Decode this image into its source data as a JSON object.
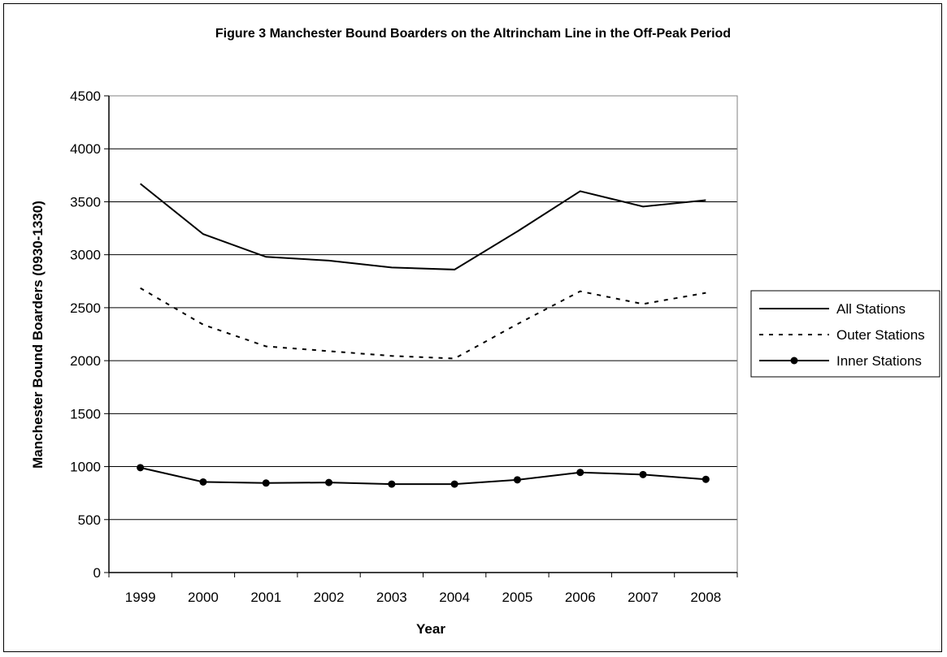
{
  "chart_data": {
    "type": "line",
    "title": "Figure 3 Manchester Bound Boarders on the Altrincham Line in the Off-Peak Period",
    "xlabel": "Year",
    "ylabel": "Manchester Bound Boarders (0930-1330)",
    "categories": [
      "1999",
      "2000",
      "2001",
      "2002",
      "2003",
      "2004",
      "2005",
      "2006",
      "2007",
      "2008"
    ],
    "ylim": [
      0,
      4500
    ],
    "yticks": [
      "0",
      "500",
      "1000",
      "1500",
      "2000",
      "2500",
      "3000",
      "3500",
      "4000",
      "4500"
    ],
    "grid": true,
    "legend_position": "right",
    "series": [
      {
        "name": "All Stations",
        "style": "solid",
        "marker": "none",
        "color": "#000000",
        "values": [
          3670,
          3195,
          2980,
          2945,
          2880,
          2860,
          3220,
          3600,
          3455,
          3515
        ]
      },
      {
        "name": "Outer Stations",
        "style": "dashed",
        "marker": "none",
        "color": "#000000",
        "values": [
          2685,
          2340,
          2135,
          2090,
          2045,
          2020,
          2345,
          2655,
          2535,
          2640
        ]
      },
      {
        "name": "Inner Stations",
        "style": "solid",
        "marker": "circle",
        "color": "#000000",
        "values": [
          990,
          855,
          845,
          850,
          835,
          835,
          875,
          945,
          925,
          880
        ]
      }
    ]
  }
}
